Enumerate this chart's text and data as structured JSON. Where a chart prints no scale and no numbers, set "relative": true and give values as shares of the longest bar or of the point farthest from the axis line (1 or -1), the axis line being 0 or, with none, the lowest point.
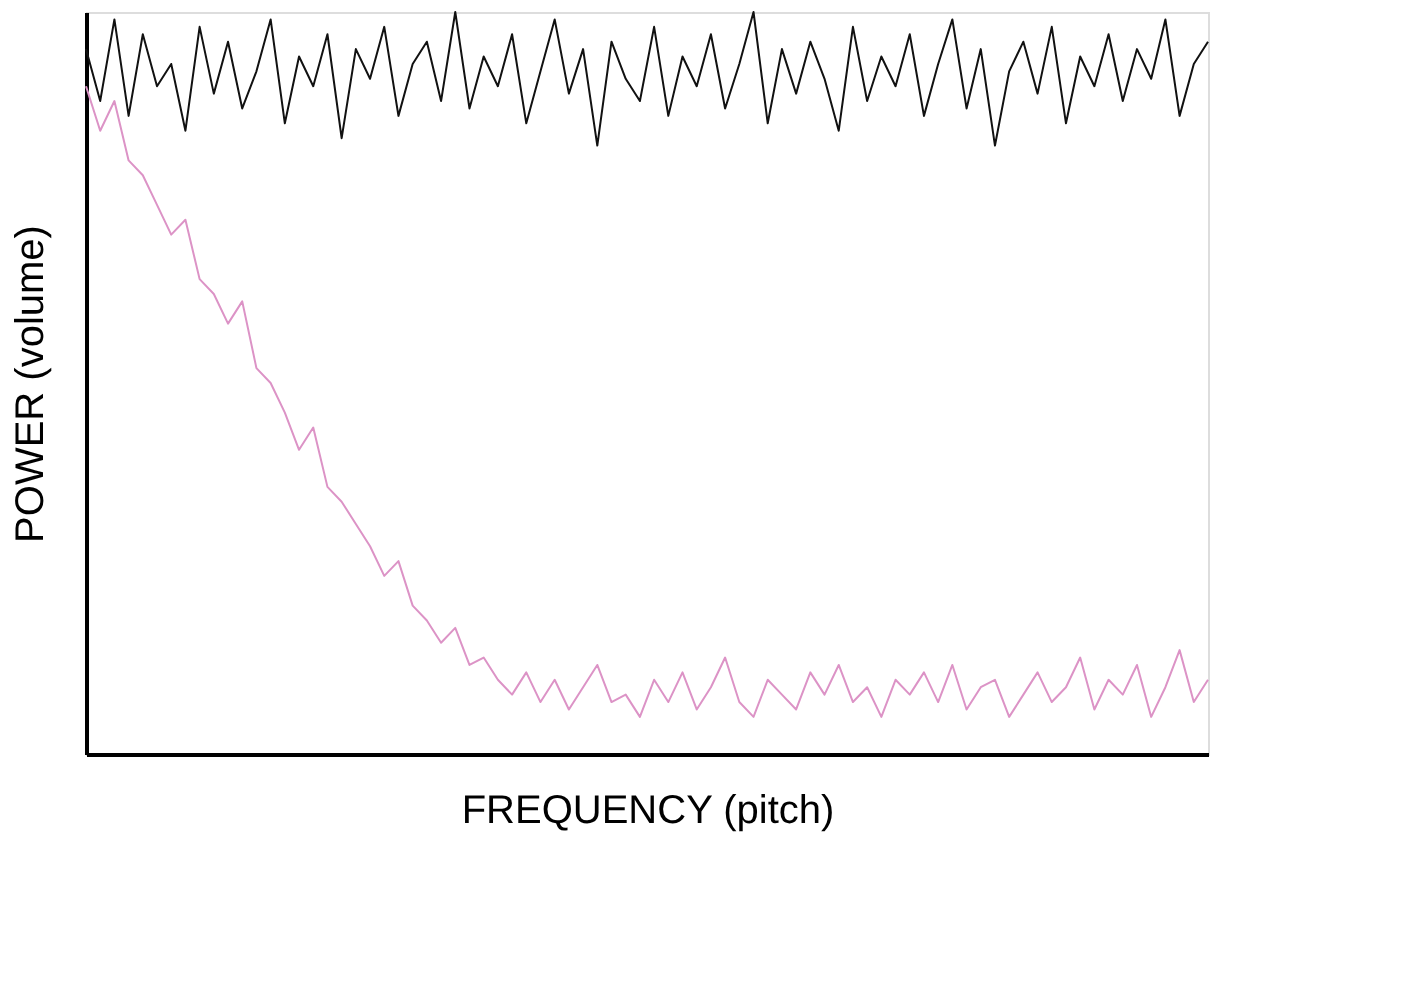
{
  "chart_data": {
    "type": "line",
    "relative": true,
    "xlabel": "FREQUENCY (pitch)",
    "ylabel": "POWER (volume)",
    "grid": false,
    "legend": false,
    "marker": "none",
    "line_style": "solid",
    "tick_labels": false,
    "categories": [
      null,
      null,
      null,
      null,
      null,
      null,
      null,
      null,
      null,
      null,
      null,
      null,
      null,
      null,
      null,
      null,
      null,
      null,
      null,
      null,
      null,
      null,
      null,
      null,
      null,
      null,
      null,
      null,
      null,
      null,
      null,
      null,
      null,
      null,
      null,
      null,
      null,
      null,
      null,
      null,
      null,
      null,
      null,
      null,
      null,
      null,
      null,
      null,
      null,
      null,
      null,
      null,
      null,
      null,
      null,
      null,
      null,
      null,
      null,
      null,
      null,
      null,
      null,
      null,
      null,
      null,
      null,
      null,
      null,
      null,
      null,
      null,
      null,
      null,
      null,
      null,
      null,
      null,
      null,
      null
    ],
    "series": [
      {
        "color": "#111111",
        "values": [
          0.95,
          0.88,
          0.99,
          0.86,
          0.97,
          0.9,
          0.93,
          0.84,
          0.98,
          0.89,
          0.96,
          0.87,
          0.92,
          0.99,
          0.85,
          0.94,
          0.9,
          0.97,
          0.83,
          0.95,
          0.91,
          0.98,
          0.86,
          0.93,
          0.96,
          0.88,
          1.0,
          0.87,
          0.94,
          0.9,
          0.97,
          0.85,
          0.92,
          0.99,
          0.89,
          0.95,
          0.82,
          0.96,
          0.91,
          0.88,
          0.98,
          0.86,
          0.94,
          0.9,
          0.97,
          0.87,
          0.93,
          1.0,
          0.85,
          0.95,
          0.89,
          0.96,
          0.91,
          0.84,
          0.98,
          0.88,
          0.94,
          0.9,
          0.97,
          0.86,
          0.93,
          0.99,
          0.87,
          0.95,
          0.82,
          0.92,
          0.96,
          0.89,
          0.98,
          0.85,
          0.94,
          0.9,
          0.97,
          0.88,
          0.95,
          0.91,
          0.99,
          0.86,
          0.93,
          0.96
        ]
      },
      {
        "color": "#dc93c6",
        "values": [
          0.9,
          0.84,
          0.88,
          0.8,
          0.78,
          0.74,
          0.7,
          0.72,
          0.64,
          0.62,
          0.58,
          0.61,
          0.52,
          0.5,
          0.46,
          0.41,
          0.44,
          0.36,
          0.34,
          0.31,
          0.28,
          0.24,
          0.26,
          0.2,
          0.18,
          0.15,
          0.17,
          0.12,
          0.13,
          0.1,
          0.08,
          0.11,
          0.07,
          0.1,
          0.06,
          0.09,
          0.12,
          0.07,
          0.08,
          0.05,
          0.1,
          0.07,
          0.11,
          0.06,
          0.09,
          0.13,
          0.07,
          0.05,
          0.1,
          0.08,
          0.06,
          0.11,
          0.08,
          0.12,
          0.07,
          0.09,
          0.05,
          0.1,
          0.08,
          0.11,
          0.07,
          0.12,
          0.06,
          0.09,
          0.1,
          0.05,
          0.08,
          0.11,
          0.07,
          0.09,
          0.13,
          0.06,
          0.1,
          0.08,
          0.12,
          0.05,
          0.09,
          0.14,
          0.07,
          0.1
        ]
      }
    ]
  }
}
